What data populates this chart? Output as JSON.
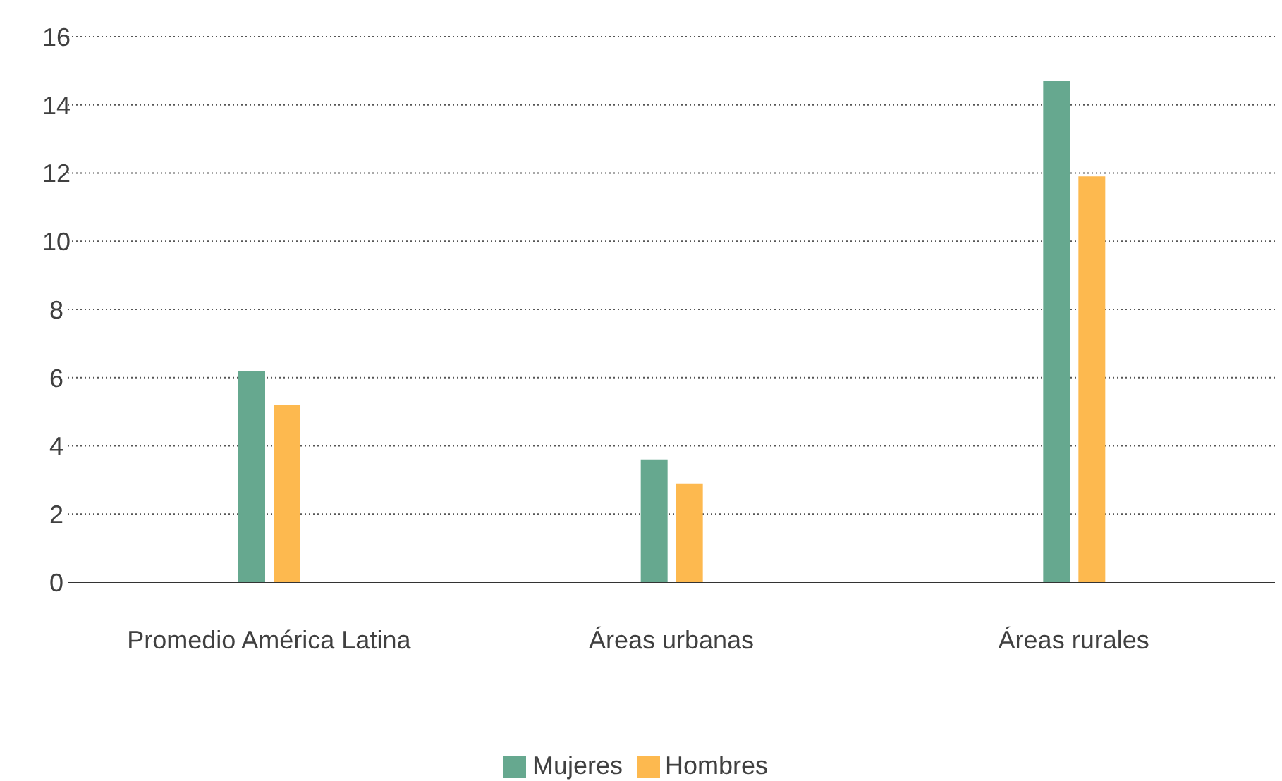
{
  "chart_data": {
    "type": "bar",
    "categories": [
      "Promedio América Latina",
      "Áreas urbanas",
      "Áreas rurales"
    ],
    "series": [
      {
        "name": "Mujeres",
        "color": "#66a88f",
        "values": [
          6.2,
          3.6,
          14.7
        ]
      },
      {
        "name": "Hombres",
        "color": "#fdb94f",
        "values": [
          5.2,
          2.9,
          11.9
        ]
      }
    ],
    "ylim": [
      0,
      16
    ],
    "yticks": [
      0,
      2,
      4,
      6,
      8,
      10,
      12,
      14,
      16
    ],
    "grid": "y",
    "legend": "bottom"
  }
}
